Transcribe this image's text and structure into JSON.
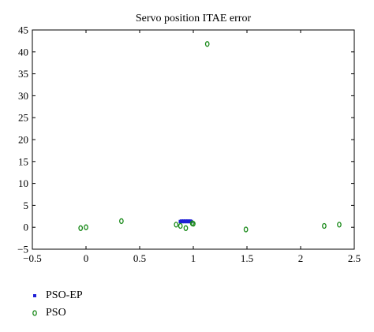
{
  "chart_data": {
    "type": "scatter",
    "title": "Servo position ITAE error",
    "xlabel": "",
    "ylabel": "",
    "xlim": [
      -0.5,
      2.5
    ],
    "ylim": [
      -5,
      45
    ],
    "xticks": [
      -0.5,
      0,
      0.5,
      1,
      1.5,
      2,
      2.5
    ],
    "xtick_labels": [
      "−0.5",
      "0",
      "0.5",
      "1",
      "1.5",
      "2",
      "2.5"
    ],
    "yticks": [
      -5,
      0,
      5,
      10,
      15,
      20,
      25,
      30,
      35,
      40,
      45
    ],
    "ytick_labels": [
      "−5",
      "0",
      "5",
      "10",
      "15",
      "20",
      "25",
      "30",
      "35",
      "40",
      "45"
    ],
    "grid": false,
    "legend_position": "below-left",
    "series": [
      {
        "name": "PSO-EP",
        "marker": "x",
        "color": "#1f1fd6",
        "points": [
          [
            0.88,
            1.3
          ],
          [
            0.89,
            1.4
          ],
          [
            0.9,
            1.3
          ],
          [
            0.91,
            1.4
          ],
          [
            0.92,
            1.3
          ],
          [
            0.93,
            1.4
          ],
          [
            0.94,
            1.3
          ],
          [
            0.95,
            1.4
          ],
          [
            0.96,
            1.3
          ],
          [
            0.97,
            1.4
          ],
          [
            0.98,
            1.3
          ]
        ]
      },
      {
        "name": "PSO",
        "marker": "o",
        "color": "#1a8a1a",
        "points": [
          [
            -0.05,
            -0.2
          ],
          [
            0.0,
            0.0
          ],
          [
            0.33,
            1.4
          ],
          [
            0.84,
            0.6
          ],
          [
            0.88,
            0.3
          ],
          [
            0.93,
            -0.2
          ],
          [
            0.99,
            0.9
          ],
          [
            1.0,
            0.8
          ],
          [
            1.13,
            41.8
          ],
          [
            1.49,
            -0.5
          ],
          [
            2.22,
            0.3
          ],
          [
            2.36,
            0.6
          ]
        ]
      }
    ]
  }
}
